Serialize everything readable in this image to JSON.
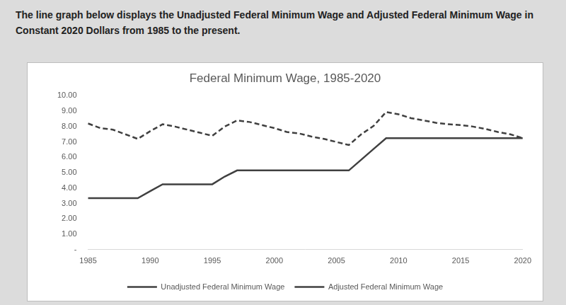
{
  "caption": "The line graph below displays the Unadjusted Federal Minimum Wage and Adjusted Federal Minimum Wage in Constant 2020 Dollars from 1985 to the present.",
  "chart_data": {
    "type": "line",
    "title": "Federal Minimum Wage, 1985-2020",
    "categories": [
      "1985",
      null,
      null,
      null,
      null,
      "1990",
      null,
      null,
      null,
      null,
      "1995",
      null,
      null,
      null,
      null,
      "2000",
      null,
      null,
      null,
      null,
      "2005",
      null,
      null,
      null,
      null,
      "2010",
      null,
      null,
      null,
      null,
      "2015",
      null,
      null,
      null,
      null,
      "2020"
    ],
    "series": [
      {
        "name": "Unadjusted Federal Minimum Wage",
        "color": "#404040",
        "line_style": "solid",
        "marker": "none",
        "values": [
          3.35,
          3.35,
          3.35,
          3.35,
          3.35,
          3.8,
          4.25,
          4.25,
          4.25,
          4.25,
          4.25,
          4.75,
          5.15,
          5.15,
          5.15,
          5.15,
          5.15,
          5.15,
          5.15,
          5.15,
          5.15,
          5.15,
          5.85,
          6.55,
          7.25,
          7.25,
          7.25,
          7.25,
          7.25,
          7.25,
          7.25,
          7.25,
          7.25,
          7.25,
          7.25,
          7.25
        ]
      },
      {
        "name": "Adjusted Federal Minimum Wage",
        "color": "#404040",
        "line_style": "dashed",
        "marker": "none",
        "values": [
          8.2,
          7.9,
          7.8,
          7.5,
          7.2,
          7.7,
          8.15,
          8.0,
          7.8,
          7.6,
          7.4,
          8.0,
          8.4,
          8.3,
          8.1,
          7.9,
          7.65,
          7.55,
          7.35,
          7.2,
          7.0,
          6.8,
          7.5,
          8.05,
          8.95,
          8.8,
          8.55,
          8.4,
          8.25,
          8.15,
          8.1,
          8.0,
          7.85,
          7.65,
          7.5,
          7.25
        ]
      }
    ],
    "ylim": [
      0,
      10
    ],
    "yticks": [
      {
        "value": 0,
        "label": "-"
      },
      {
        "value": 1,
        "label": "1.00"
      },
      {
        "value": 2,
        "label": "2.00"
      },
      {
        "value": 3,
        "label": "3.00"
      },
      {
        "value": 4,
        "label": "4.00"
      },
      {
        "value": 5,
        "label": "5.00"
      },
      {
        "value": 6,
        "label": "6.00"
      },
      {
        "value": 7,
        "label": "7.00"
      },
      {
        "value": 8,
        "label": "8.00"
      },
      {
        "value": 9,
        "label": "9.00"
      },
      {
        "value": 10,
        "label": "10.00"
      }
    ],
    "grid": false,
    "legend": "bottom"
  }
}
